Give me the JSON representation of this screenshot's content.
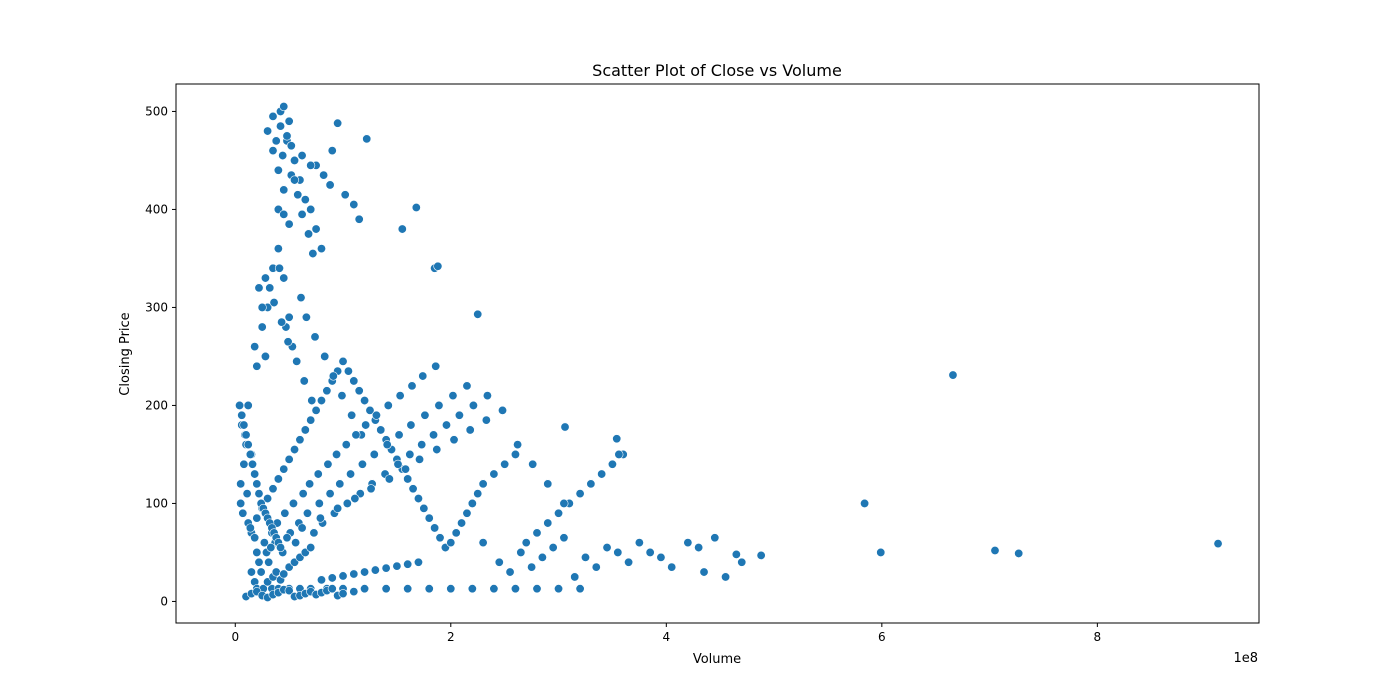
{
  "chart_data": {
    "type": "scatter",
    "title": "Scatter Plot of Close vs Volume",
    "xlabel": "Volume",
    "ylabel": "Closing Price",
    "x_offset_label": "1e8",
    "x_scale": 100000000,
    "xlim": [
      -0.55,
      9.5
    ],
    "ylim": [
      -22,
      528
    ],
    "x_ticks": [
      0,
      2,
      4,
      6,
      8
    ],
    "x_tick_labels": [
      "0",
      "2",
      "4",
      "6",
      "8"
    ],
    "y_ticks": [
      0,
      100,
      200,
      300,
      400,
      500
    ],
    "y_tick_labels": [
      "0",
      "100",
      "200",
      "300",
      "400",
      "500"
    ],
    "grid": false,
    "marker_color": "#1f77b4",
    "marker_edge_color": "#ffffff",
    "series": [
      {
        "x": [
          0.05,
          0.08,
          0.1,
          0.06,
          0.12,
          0.07,
          0.15,
          0.09,
          0.11,
          0.05,
          0.2,
          0.18,
          0.25,
          0.3,
          0.22,
          0.35,
          0.4,
          0.28,
          0.45,
          0.5,
          0.12,
          0.15,
          0.18,
          0.14,
          0.2,
          0.25,
          0.3,
          0.35,
          0.4,
          0.45,
          0.5,
          0.55,
          0.6,
          0.65,
          0.7,
          0.75,
          0.8,
          0.85,
          0.9,
          0.95,
          1.0,
          1.05,
          1.1,
          1.15,
          1.2,
          1.25,
          1.3,
          1.35,
          1.4,
          1.45,
          1.5,
          1.55,
          1.6,
          1.65,
          1.7,
          1.75,
          1.8,
          1.85,
          1.9,
          1.95,
          2.0,
          2.05,
          2.1,
          2.15,
          2.2,
          2.25,
          2.3,
          2.4,
          2.5,
          2.6,
          2.7,
          2.8,
          2.9,
          3.0,
          3.1,
          3.2,
          3.3,
          3.4,
          3.5,
          3.6,
          0.3,
          0.35,
          0.4,
          0.42,
          0.45,
          0.48,
          0.5,
          0.55,
          0.6,
          0.65,
          0.7,
          0.75,
          0.8,
          0.38,
          0.44,
          0.52,
          0.58,
          0.62,
          0.68,
          0.72,
          0.25,
          0.32,
          0.41,
          0.47,
          0.53,
          0.61,
          0.66,
          0.74,
          0.83,
          0.91,
          0.99,
          1.08,
          1.17,
          0.28,
          0.36,
          0.43,
          0.49,
          0.57,
          0.64,
          0.71,
          0.2,
          0.27,
          0.34,
          0.39,
          0.46,
          0.54,
          0.63,
          0.69,
          0.77,
          0.86,
          0.94,
          1.03,
          1.12,
          1.21,
          1.31,
          1.42,
          1.53,
          1.64,
          1.74,
          1.86,
          0.15,
          0.22,
          0.29,
          0.37,
          0.51,
          0.59,
          0.67,
          0.78,
          0.88,
          0.97,
          1.07,
          1.18,
          1.29,
          1.41,
          1.52,
          1.63,
          1.76,
          1.89,
          2.02,
          2.15,
          0.18,
          0.24,
          0.31,
          0.44,
          0.56,
          0.73,
          0.81,
          0.92,
          1.04,
          1.16,
          1.27,
          1.39,
          1.51,
          1.62,
          1.73,
          1.84,
          1.96,
          2.08,
          2.21,
          2.34,
          0.22,
          0.33,
          0.48,
          0.62,
          0.79,
          0.95,
          1.11,
          1.26,
          1.43,
          1.58,
          1.71,
          1.87,
          2.03,
          2.18,
          2.33,
          2.48,
          2.62,
          2.76,
          2.9,
          3.05,
          0.2,
          0.26,
          0.34,
          0.4,
          0.5,
          0.6,
          0.7,
          0.85,
          1.0,
          1.2,
          1.4,
          1.6,
          1.8,
          2.0,
          2.2,
          2.4,
          2.6,
          2.8,
          3.0,
          3.2,
          0.1,
          0.15,
          0.2,
          0.25,
          0.3,
          0.35,
          0.4,
          0.45,
          0.5,
          0.55,
          0.6,
          0.65,
          0.7,
          0.75,
          0.8,
          0.85,
          0.9,
          0.95,
          1.0,
          1.1,
          0.3,
          0.35,
          0.38,
          0.42,
          0.45,
          0.5,
          0.55,
          0.6,
          0.65,
          0.7,
          0.8,
          0.9,
          1.0,
          1.1,
          1.2,
          1.3,
          1.4,
          1.5,
          1.6,
          1.7,
          0.04,
          0.06,
          0.08,
          0.1,
          0.12,
          0.14,
          0.16,
          0.18,
          0.2,
          0.22,
          0.24,
          0.26,
          0.28,
          0.3,
          0.32,
          0.34,
          0.36,
          0.38,
          0.4,
          0.42,
          2.3,
          2.45,
          2.55,
          2.65,
          2.75,
          2.85,
          2.95,
          3.05,
          3.15,
          3.25,
          3.35,
          3.45,
          3.55,
          3.65,
          3.75,
          3.85,
          3.95,
          4.05,
          4.2,
          4.3,
          4.35,
          4.45,
          4.55,
          4.65,
          4.7,
          4.88,
          5.84,
          5.99,
          6.66,
          7.05,
          7.27,
          9.12,
          3.54,
          3.56,
          3.06,
          2.25,
          1.68,
          1.55,
          1.85,
          1.88,
          1.22,
          1.15,
          0.9,
          0.75,
          0.55,
          0.45,
          0.35,
          0.42,
          0.48,
          0.52,
          0.62,
          0.7,
          0.82,
          0.88,
          1.02,
          1.1,
          0.95,
          0.4,
          0.45,
          0.5
        ],
        "y": [
          120,
          140,
          160,
          180,
          200,
          90,
          150,
          170,
          110,
          100,
          240,
          260,
          280,
          300,
          320,
          340,
          360,
          250,
          330,
          290,
          80,
          70,
          65,
          75,
          85,
          95,
          105,
          115,
          125,
          135,
          145,
          155,
          165,
          175,
          185,
          195,
          205,
          215,
          225,
          235,
          245,
          235,
          225,
          215,
          205,
          195,
          185,
          175,
          165,
          155,
          145,
          135,
          125,
          115,
          105,
          95,
          85,
          75,
          65,
          55,
          60,
          70,
          80,
          90,
          100,
          110,
          120,
          130,
          140,
          150,
          60,
          70,
          80,
          90,
          100,
          110,
          120,
          130,
          140,
          150,
          480,
          460,
          440,
          500,
          420,
          470,
          490,
          450,
          430,
          410,
          400,
          380,
          360,
          470,
          455,
          435,
          415,
          395,
          375,
          355,
          300,
          320,
          340,
          280,
          260,
          310,
          290,
          270,
          250,
          230,
          210,
          190,
          170,
          330,
          305,
          285,
          265,
          245,
          225,
          205,
          50,
          60,
          70,
          80,
          90,
          100,
          110,
          120,
          130,
          140,
          150,
          160,
          170,
          180,
          190,
          200,
          210,
          220,
          230,
          240,
          30,
          40,
          50,
          60,
          70,
          80,
          90,
          100,
          110,
          120,
          130,
          140,
          150,
          160,
          170,
          180,
          190,
          200,
          210,
          220,
          20,
          30,
          40,
          50,
          60,
          70,
          80,
          90,
          100,
          110,
          120,
          130,
          140,
          150,
          160,
          170,
          180,
          190,
          200,
          210,
          40,
          55,
          65,
          75,
          85,
          95,
          105,
          115,
          125,
          135,
          145,
          155,
          165,
          175,
          185,
          195,
          160,
          140,
          120,
          100,
          13,
          13,
          13,
          13,
          13,
          13,
          13,
          13,
          13,
          13,
          13,
          13,
          13,
          13,
          13,
          13,
          13,
          13,
          13,
          13,
          5,
          8,
          10,
          6,
          4,
          7,
          9,
          12,
          11,
          5,
          6,
          8,
          10,
          7,
          9,
          11,
          13,
          6,
          8,
          10,
          20,
          25,
          30,
          22,
          28,
          35,
          40,
          45,
          50,
          55,
          22,
          24,
          26,
          28,
          30,
          32,
          34,
          36,
          38,
          40,
          200,
          190,
          180,
          170,
          160,
          150,
          140,
          130,
          120,
          110,
          100,
          95,
          90,
          85,
          80,
          75,
          70,
          65,
          60,
          55,
          60,
          40,
          30,
          50,
          35,
          45,
          55,
          65,
          25,
          45,
          35,
          55,
          50,
          40,
          60,
          50,
          45,
          35,
          60,
          55,
          30,
          65,
          25,
          48,
          40,
          47,
          100,
          50,
          231,
          52,
          49,
          59,
          166,
          150,
          178,
          293,
          402,
          380,
          340,
          342,
          472,
          390,
          460,
          445,
          430,
          505,
          495,
          485,
          475,
          465,
          455,
          445,
          435,
          425,
          415,
          405,
          488,
          400,
          395,
          385
        ]
      }
    ]
  }
}
